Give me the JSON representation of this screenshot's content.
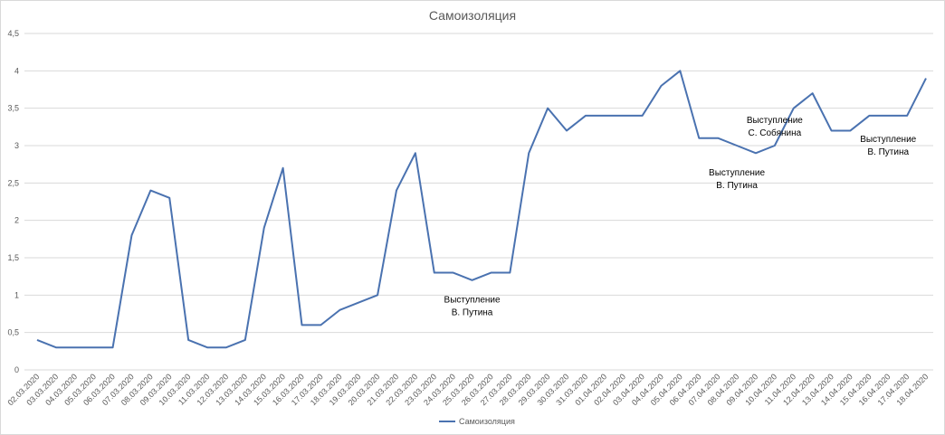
{
  "chart_data": {
    "type": "line",
    "title": "Самоизоляция",
    "xlabel": "",
    "ylabel": "",
    "ylim": [
      0,
      4.5
    ],
    "yticks": [
      "0",
      "0,5",
      "1",
      "1,5",
      "2",
      "2,5",
      "3",
      "3,5",
      "4",
      "4,5"
    ],
    "grid": true,
    "legend_position": "bottom",
    "categories": [
      "02.03.2020",
      "03.03.2020",
      "04.03.2020",
      "05.03.2020",
      "06.03.2020",
      "07.03.2020",
      "08.03.2020",
      "09.03.2020",
      "10.03.2020",
      "11.03.2020",
      "12.03.2020",
      "13.03.2020",
      "14.03.2020",
      "15.03.2020",
      "16.03.2020",
      "17.03.2020",
      "18.03.2020",
      "19.03.2020",
      "20.03.2020",
      "21.03.2020",
      "22.03.2020",
      "23.03.2020",
      "24.03.2020",
      "25.03.2020",
      "26.03.2020",
      "27.03.2020",
      "28.03.2020",
      "29.03.2020",
      "30.03.2020",
      "31.03.2020",
      "01.04.2020",
      "02.04.2020",
      "03.04.2020",
      "04.04.2020",
      "05.04.2020",
      "06.04.2020",
      "07.04.2020",
      "08.04.2020",
      "09.04.2020",
      "10.04.2020",
      "11.04.2020",
      "12.04.2020",
      "13.04.2020",
      "14.04.2020",
      "15.04.2020",
      "16.04.2020",
      "17.04.2020",
      "18.04.2020"
    ],
    "series": [
      {
        "name": "Самоизоляция",
        "color": "#4a72b0",
        "values": [
          0.4,
          0.3,
          0.3,
          0.3,
          0.3,
          1.8,
          2.4,
          2.3,
          0.4,
          0.3,
          0.3,
          0.4,
          1.9,
          2.7,
          0.6,
          0.6,
          0.8,
          0.9,
          1.0,
          2.4,
          2.9,
          1.3,
          1.3,
          1.2,
          1.3,
          1.3,
          2.9,
          3.5,
          3.2,
          3.4,
          3.4,
          3.4,
          3.4,
          3.8,
          4.0,
          3.1,
          3.1,
          3.0,
          2.9,
          3.0,
          3.5,
          3.7,
          3.2,
          3.2,
          3.4,
          3.4,
          3.4,
          3.9
        ]
      }
    ],
    "annotations": [
      {
        "lines": [
          "Выступление",
          "В. Путина"
        ],
        "category": "25.03.2020",
        "y": 0.9
      },
      {
        "lines": [
          "Выступление",
          "В. Путина"
        ],
        "category": "08.04.2020",
        "y": 2.6
      },
      {
        "lines": [
          "Выступление",
          "С. Собянина"
        ],
        "category": "10.04.2020",
        "y": 3.3
      },
      {
        "lines": [
          "Выступление",
          "В. Путина"
        ],
        "category": "16.04.2020",
        "y": 3.05
      }
    ]
  }
}
